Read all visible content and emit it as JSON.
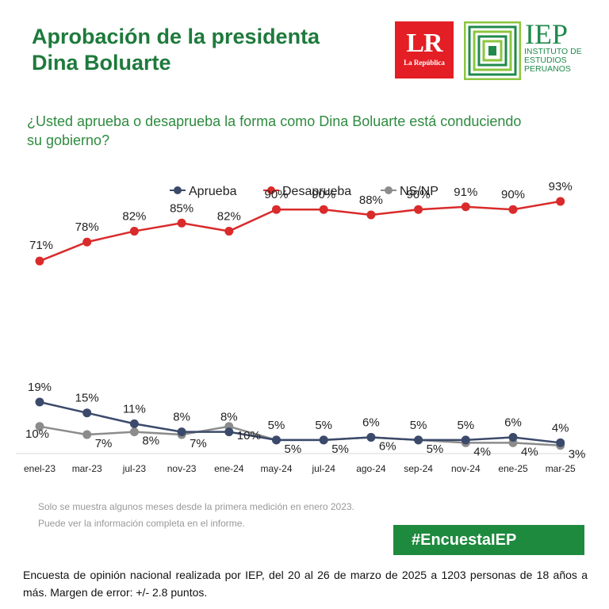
{
  "header": {
    "title_line1": "Aprobación de la presidenta",
    "title_line2": "Dina Boluarte",
    "lr_logo_text": "LR",
    "lr_logo_sub": "La República",
    "iep_logo_text": "IEP",
    "iep_logo_sub": [
      "INSTITUTO DE",
      "ESTUDIOS",
      "PERUANOS"
    ]
  },
  "question": "¿Usted aprueba o desaprueba la forma como Dina Boluarte está conduciendo su gobierno?",
  "chart_data": {
    "type": "line",
    "categories": [
      "enel-23",
      "mar-23",
      "jul-23",
      "nov-23",
      "ene-24",
      "may-24",
      "jul-24",
      "ago-24",
      "sep-24",
      "nov-24",
      "ene-25",
      "mar-25"
    ],
    "series": [
      {
        "name": "Aprueba",
        "color": "#3b4a6b",
        "values": [
          19,
          15,
          11,
          8,
          8,
          5,
          5,
          6,
          5,
          5,
          6,
          4
        ]
      },
      {
        "name": "Desaprueba",
        "color": "#d92b2b",
        "values": [
          71,
          78,
          82,
          85,
          82,
          90,
          90,
          88,
          90,
          91,
          90,
          93
        ]
      },
      {
        "name": "NS/NP",
        "color": "#8c8c8c",
        "values": [
          10,
          7,
          8,
          7,
          10,
          5,
          5,
          6,
          5,
          4,
          4,
          3
        ]
      }
    ],
    "value_suffix": "%",
    "legend_position": "top-center",
    "ylim": [
      0,
      100
    ],
    "grid": false
  },
  "notes": [
    "Solo se muestra algunos meses desde la primera medición en enero 2023.",
    "Puede ver la información completa en el informe."
  ],
  "hashtag": "#EncuestaIEP",
  "footer": "Encuesta de opinión nacional realizada por IEP, del 20 al 26 de marzo de 2025 a 1203 personas de 18 años a más. Margen de error: +/- 2.8 puntos."
}
